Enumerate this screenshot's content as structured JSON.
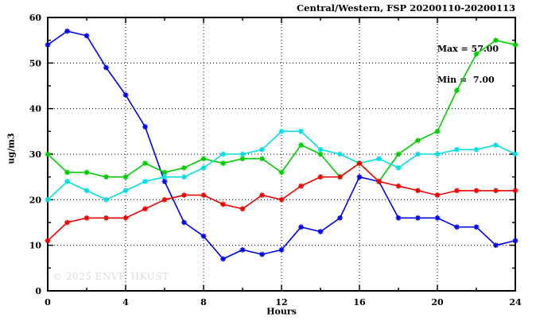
{
  "title": "Central/Western, FSP 20200110-20200113",
  "annotations": {
    "max_label": "Max = 57.00",
    "min_label": "Min =  7.00"
  },
  "watermark": "© 2025 ENVF, HKUST",
  "axes": {
    "ylabel": "ug/m3",
    "xlabel": "Hours",
    "x_ticks": [
      0,
      4,
      8,
      12,
      16,
      20,
      24
    ],
    "x_minor_step": 2,
    "y_ticks": [
      0,
      10,
      20,
      30,
      40,
      50,
      60
    ],
    "y_minor_step": 5,
    "grid": true
  },
  "chart_data": {
    "type": "line",
    "title": "Central/Western, FSP 20200110-20200113",
    "xlabel": "Hours",
    "ylabel": "ug/m3",
    "xlim": [
      0,
      24
    ],
    "ylim": [
      0,
      60
    ],
    "legend_position": "none",
    "grid": true,
    "max": 57.0,
    "min": 7.0,
    "x": [
      0,
      1,
      2,
      3,
      4,
      5,
      6,
      7,
      8,
      9,
      10,
      11,
      12,
      13,
      14,
      15,
      16,
      17,
      18,
      19,
      20,
      21,
      22,
      23,
      24
    ],
    "series": [
      {
        "name": "series-1-blue",
        "color": "#0000ee",
        "values": [
          54,
          57,
          56,
          49,
          43,
          36,
          24,
          15,
          12,
          7,
          9,
          8,
          9,
          14,
          13,
          16,
          25,
          24,
          16,
          16,
          16,
          14,
          14,
          10,
          11
        ]
      },
      {
        "name": "series-2-green",
        "color": "#00cc00",
        "values": [
          30,
          26,
          26,
          25,
          25,
          28,
          26,
          27,
          29,
          28,
          29,
          29,
          26,
          32,
          30,
          25,
          28,
          24,
          30,
          33,
          35,
          44,
          52,
          55,
          54
        ]
      },
      {
        "name": "series-3-cyan",
        "color": "#00dde0",
        "values": [
          20,
          24,
          22,
          20,
          22,
          24,
          25,
          25,
          27,
          30,
          30,
          31,
          35,
          35,
          31,
          30,
          28,
          29,
          27,
          30,
          30,
          31,
          31,
          32,
          30
        ]
      },
      {
        "name": "series-4-red",
        "color": "#ee0000",
        "values": [
          11,
          15,
          16,
          16,
          16,
          18,
          20,
          21,
          21,
          19,
          18,
          21,
          20,
          23,
          25,
          25,
          28,
          24,
          23,
          22,
          21,
          22,
          22,
          22,
          22
        ]
      }
    ]
  }
}
